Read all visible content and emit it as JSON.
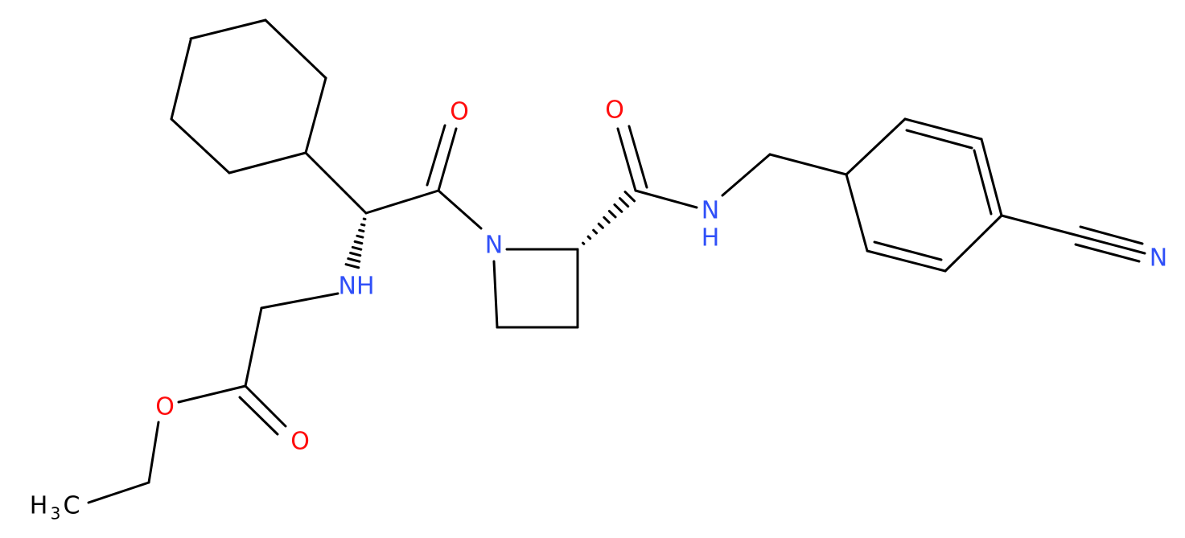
{
  "atoms": [
    {
      "label": "O"
    },
    {
      "label": "O"
    },
    {
      "label": "N"
    },
    {
      "label": "N",
      "h": "H"
    },
    {
      "label": "NH"
    },
    {
      "label": "O"
    },
    {
      "label": "O"
    },
    {
      "label": "H",
      "sub": "3",
      "tail": "C"
    },
    {
      "label": "N"
    }
  ]
}
